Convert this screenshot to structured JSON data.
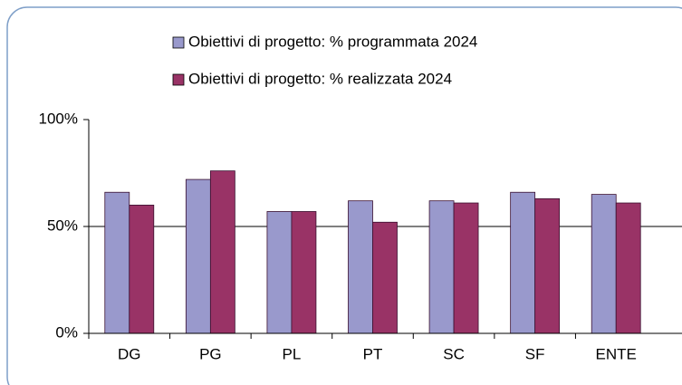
{
  "chart_data": {
    "type": "bar",
    "categories": [
      "DG",
      "PG",
      "PL",
      "PT",
      "SC",
      "SF",
      "ENTE"
    ],
    "series": [
      {
        "name": "Obiettivi di progetto: % programmata 2024",
        "color": "#9999cc",
        "values": [
          66,
          72,
          57,
          62,
          62,
          66,
          65
        ]
      },
      {
        "name": "Obiettivi di progetto: % realizzata 2024",
        "color": "#993366",
        "values": [
          60,
          76,
          57,
          52,
          61,
          63,
          61
        ]
      }
    ],
    "ylim": [
      0,
      100
    ],
    "yticks": [
      {
        "value": 0,
        "label": "0%"
      },
      {
        "value": 50,
        "label": "50%"
      },
      {
        "value": 100,
        "label": "100%"
      }
    ],
    "grid": true
  }
}
